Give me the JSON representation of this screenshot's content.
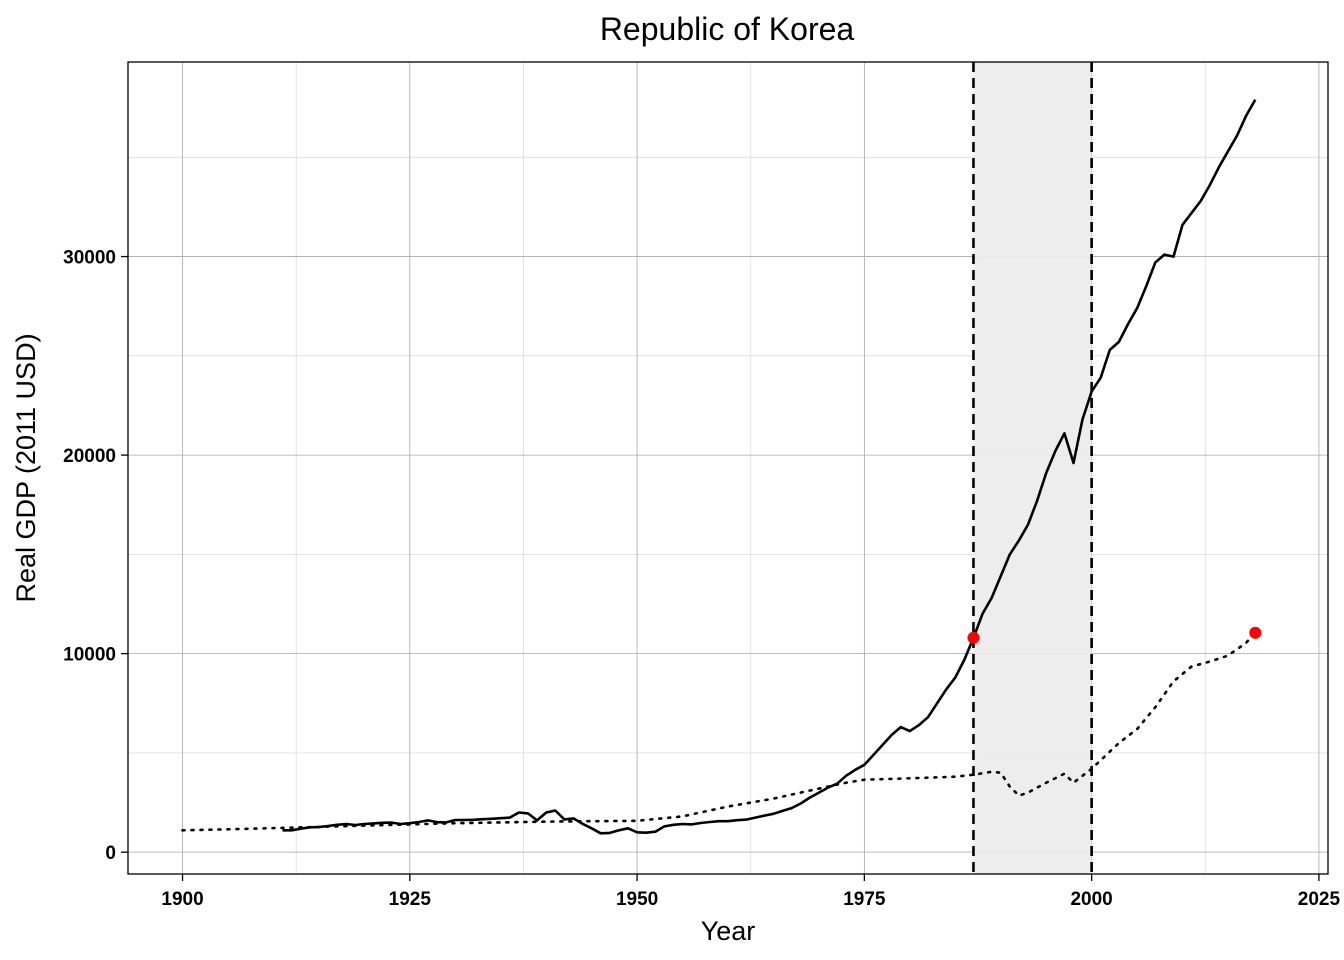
{
  "chart_data": {
    "type": "line",
    "title": "Republic of Korea",
    "xlabel": "Year",
    "ylabel": "Real GDP (2011 USD)",
    "xlim": [
      1894,
      2026
    ],
    "ylim": [
      -1100,
      39800
    ],
    "x_ticks": [
      1900,
      1925,
      1950,
      1975,
      2000,
      2025
    ],
    "y_ticks": [
      0,
      10000,
      20000,
      30000
    ],
    "grid": true,
    "shaded_region": [
      1987,
      2000
    ],
    "vertical_lines": [
      1987,
      2000
    ],
    "colors": {
      "line": "#000000",
      "shade": "#ebebeb",
      "marker": "#ff0000"
    },
    "series": [
      {
        "style": "solid",
        "x": [
          1911,
          1912,
          1913,
          1914,
          1915,
          1916,
          1917,
          1918,
          1919,
          1920,
          1921,
          1922,
          1923,
          1924,
          1925,
          1926,
          1927,
          1928,
          1929,
          1930,
          1931,
          1932,
          1933,
          1934,
          1935,
          1936,
          1937,
          1938,
          1939,
          1940,
          1941,
          1942,
          1943,
          1944,
          1945,
          1946,
          1947,
          1948,
          1949,
          1950,
          1951,
          1952,
          1953,
          1954,
          1955,
          1956,
          1957,
          1958,
          1959,
          1960,
          1961,
          1962,
          1963,
          1964,
          1965,
          1966,
          1967,
          1968,
          1969,
          1970,
          1971,
          1972,
          1973,
          1974,
          1975,
          1976,
          1977,
          1978,
          1979,
          1980,
          1981,
          1982,
          1983,
          1984,
          1985,
          1986,
          1987,
          1988,
          1989,
          1990,
          1991,
          1992,
          1993,
          1994,
          1995,
          1996,
          1997,
          1998,
          1999,
          2000,
          2001,
          2002,
          2003,
          2004,
          2005,
          2006,
          2007,
          2008,
          2009,
          2010,
          2011,
          2012,
          2013,
          2014,
          2015,
          2016,
          2017,
          2018
        ],
        "y": [
          1100,
          1100,
          1180,
          1250,
          1260,
          1320,
          1380,
          1420,
          1370,
          1420,
          1450,
          1480,
          1490,
          1420,
          1460,
          1520,
          1600,
          1510,
          1500,
          1620,
          1620,
          1630,
          1660,
          1680,
          1710,
          1740,
          2000,
          1950,
          1600,
          2000,
          2100,
          1650,
          1700,
          1430,
          1200,
          950,
          970,
          1100,
          1200,
          1000,
          980,
          1030,
          1300,
          1380,
          1420,
          1400,
          1470,
          1520,
          1560,
          1560,
          1610,
          1640,
          1740,
          1840,
          1930,
          2080,
          2220,
          2450,
          2750,
          3000,
          3250,
          3450,
          3850,
          4150,
          4400,
          4900,
          5400,
          5900,
          6300,
          6100,
          6400,
          6800,
          7500,
          8200,
          8800,
          9700,
          10800,
          12000,
          12800,
          13900,
          15000,
          15700,
          16500,
          17700,
          19100,
          20200,
          21100,
          19600,
          21800,
          23200,
          23900,
          25300,
          25700,
          26600,
          27400,
          28500,
          29700,
          30100,
          30000,
          31600,
          32200,
          32800,
          33600,
          34500,
          35300,
          36100,
          37100,
          37900
        ]
      },
      {
        "style": "dotted",
        "x": [
          1900,
          1905,
          1910,
          1915,
          1920,
          1925,
          1930,
          1935,
          1940,
          1945,
          1950,
          1955,
          1960,
          1965,
          1970,
          1973,
          1975,
          1980,
          1985,
          1987,
          1989,
          1990,
          1991,
          1992,
          1993,
          1995,
          1997,
          1998,
          2000,
          2003,
          2005,
          2007,
          2009,
          2011,
          2013,
          2015,
          2017,
          2018
        ],
        "y": [
          1100,
          1150,
          1210,
          1270,
          1340,
          1400,
          1460,
          1500,
          1540,
          1560,
          1580,
          1800,
          2300,
          2700,
          3200,
          3500,
          3650,
          3720,
          3800,
          3900,
          4050,
          4000,
          3300,
          2850,
          3000,
          3500,
          3950,
          3500,
          4200,
          5500,
          6200,
          7300,
          8600,
          9350,
          9600,
          9900,
          10550,
          11050
        ]
      }
    ],
    "highlight_points": [
      {
        "x": 1987,
        "y": 10800
      },
      {
        "x": 2018,
        "y": 11050
      }
    ]
  }
}
